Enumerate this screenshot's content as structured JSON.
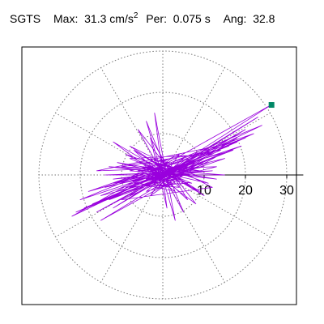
{
  "header": {
    "station": "SGTS",
    "max_label": "Max:",
    "max_value": "31.3",
    "max_unit": "cm/s",
    "max_unit_exp": "2",
    "per_label": "Per:",
    "per_value": "0.075 s",
    "ang_label": "Ang:",
    "ang_value": "32.8"
  },
  "colors": {
    "trace": "#9900dd",
    "peak_marker": "#008866",
    "grid": "#777777",
    "frame": "#000000"
  },
  "chart_data": {
    "type": "polar-trajectory",
    "title": "SGTS Max: 31.3 cm/s2 Per: 0.075 s Ang: 32.8",
    "r_ticks": [
      10,
      20,
      30
    ],
    "r_tick_labels": [
      "10",
      "20",
      "30"
    ],
    "r_max": 34,
    "rings": [
      10,
      20,
      30
    ],
    "spokes_deg": [
      0,
      30,
      60,
      90,
      120,
      150,
      180,
      210,
      240,
      270,
      300,
      330
    ],
    "grid": "dotted",
    "peak": {
      "r": 31.3,
      "angle_deg": 32.8
    },
    "trace_xy": [
      [
        0,
        0
      ],
      [
        2,
        1
      ],
      [
        -1,
        2
      ],
      [
        3,
        -1
      ],
      [
        -2,
        -2
      ],
      [
        4,
        2
      ],
      [
        -3,
        1
      ],
      [
        1,
        -3
      ],
      [
        5,
        0
      ],
      [
        -4,
        -1
      ],
      [
        2,
        4
      ],
      [
        -2,
        3
      ],
      [
        6,
        1
      ],
      [
        -5,
        2
      ],
      [
        3,
        -4
      ],
      [
        -6,
        -2
      ],
      [
        8,
        3
      ],
      [
        -7,
        0
      ],
      [
        4,
        5
      ],
      [
        -3,
        -5
      ],
      [
        10,
        4
      ],
      [
        -9,
        -3
      ],
      [
        6,
        -2
      ],
      [
        -8,
        4
      ],
      [
        12,
        5
      ],
      [
        -11,
        -4
      ],
      [
        9,
        1
      ],
      [
        -10,
        2
      ],
      [
        14,
        6
      ],
      [
        -13,
        -6
      ],
      [
        11,
        3
      ],
      [
        -12,
        -2
      ],
      [
        16,
        7
      ],
      [
        -15,
        -5
      ],
      [
        13,
        2
      ],
      [
        -16,
        1
      ],
      [
        18,
        8
      ],
      [
        -17,
        -7
      ],
      [
        15,
        4
      ],
      [
        -14,
        -3
      ],
      [
        20,
        9
      ],
      [
        -19,
        -8
      ],
      [
        17,
        6
      ],
      [
        -18,
        -4
      ],
      [
        22,
        10
      ],
      [
        -21,
        -9
      ],
      [
        19,
        7
      ],
      [
        -20,
        -6
      ],
      [
        24,
        12
      ],
      [
        -22,
        -10
      ],
      [
        26.3,
        17.0
      ],
      [
        -8,
        -5
      ],
      [
        23,
        14
      ],
      [
        -12,
        -8
      ],
      [
        20,
        11
      ],
      [
        -16,
        -9
      ],
      [
        18,
        9
      ],
      [
        -15,
        -11
      ],
      [
        14,
        5
      ],
      [
        -10,
        -6
      ],
      [
        12,
        -3
      ],
      [
        -8,
        7
      ],
      [
        10,
        -5
      ],
      [
        -12,
        8
      ],
      [
        8,
        -7
      ],
      [
        -6,
        11
      ],
      [
        5,
        -9
      ],
      [
        -4,
        13
      ],
      [
        3,
        -11
      ],
      [
        -2,
        15
      ],
      [
        1,
        -8
      ],
      [
        -3,
        9
      ],
      [
        6,
        -6
      ],
      [
        -7,
        6
      ],
      [
        9,
        -4
      ],
      [
        -9,
        5
      ],
      [
        11,
        -2
      ],
      [
        -11,
        3
      ],
      [
        13,
        -1
      ],
      [
        -13,
        2
      ],
      [
        15,
        0
      ],
      [
        -14,
        0
      ],
      [
        12,
        1
      ],
      [
        -12,
        -1
      ],
      [
        10,
        2
      ],
      [
        -10,
        -2
      ],
      [
        8,
        3
      ],
      [
        -8,
        -3
      ],
      [
        6,
        2
      ],
      [
        -6,
        -2
      ],
      [
        4,
        1
      ],
      [
        -4,
        -1
      ],
      [
        3,
        2
      ],
      [
        -3,
        -2
      ],
      [
        2,
        1
      ],
      [
        -2,
        -1
      ],
      [
        1,
        0
      ],
      [
        -1,
        0
      ],
      [
        0,
        1
      ],
      [
        0,
        -1
      ],
      [
        7,
        -2
      ],
      [
        -5,
        3
      ],
      [
        9,
        1
      ],
      [
        -7,
        -2
      ],
      [
        4,
        -3
      ],
      [
        -3,
        4
      ],
      [
        6,
        2
      ],
      [
        -6,
        1
      ],
      [
        2,
        -2
      ],
      [
        -1,
        2
      ],
      [
        5,
        4
      ],
      [
        -4,
        -4
      ],
      [
        3,
        -2
      ],
      [
        -2,
        3
      ],
      [
        8,
        0
      ],
      [
        -8,
        1
      ],
      [
        1,
        3
      ],
      [
        -1,
        -3
      ],
      [
        4,
        0
      ],
      [
        0,
        0
      ]
    ]
  }
}
